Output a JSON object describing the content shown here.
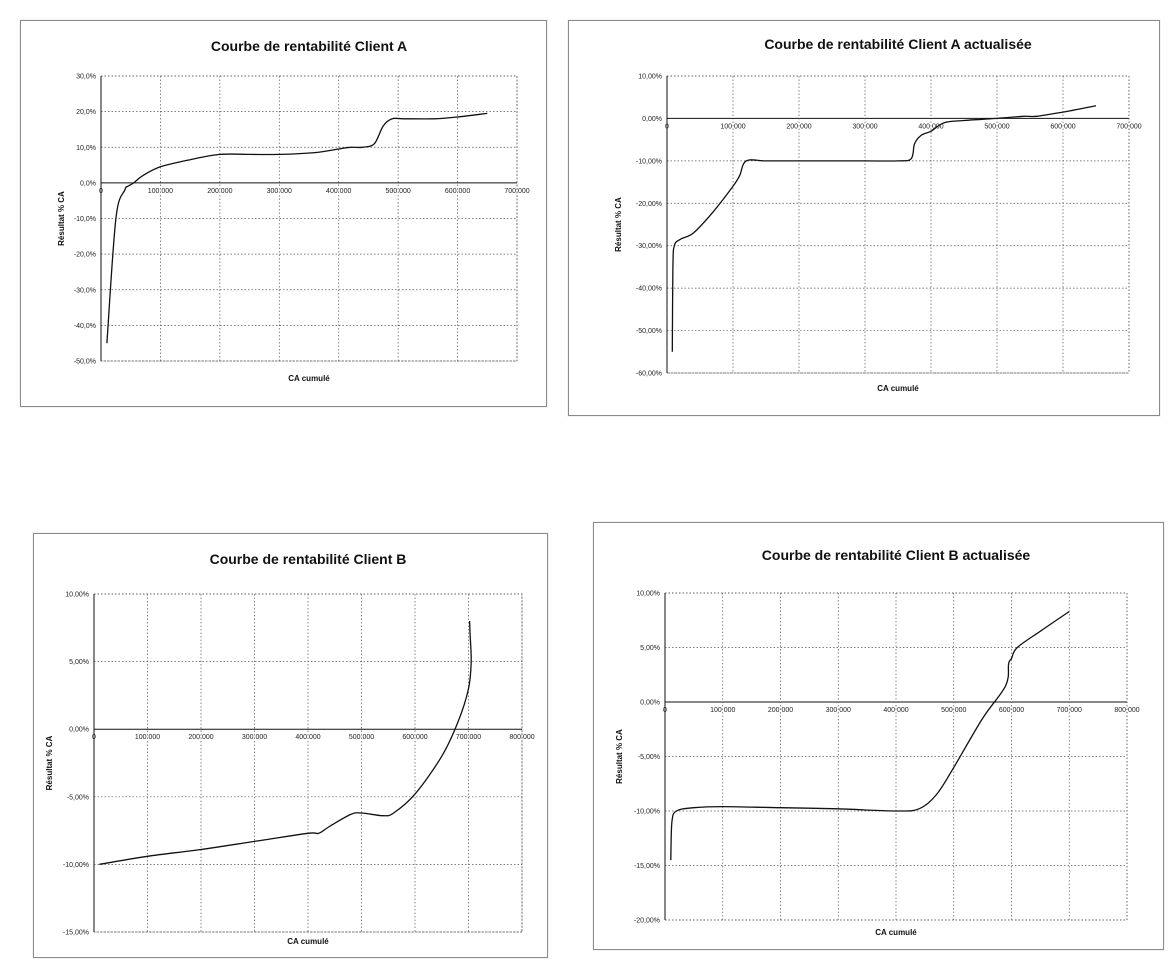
{
  "chart_data": [
    {
      "type": "line",
      "title": "Courbe de rentabilité Client A",
      "xlabel": "CA cumulé",
      "ylabel": "Résultat % CA",
      "xlim": [
        0,
        700000
      ],
      "ylim": [
        -50,
        30
      ],
      "x_ticks": [
        "100 000",
        "200 000",
        "300 000",
        "400 000",
        "500 000",
        "600 000",
        "700 000"
      ],
      "x_tick_values": [
        100000,
        200000,
        300000,
        400000,
        500000,
        600000,
        700000
      ],
      "zero_tick": "0",
      "y_ticks": [
        "30,0%",
        "20,0%",
        "10,0%",
        "0,0%",
        "-10,0%",
        "-20,0%",
        "-30,0%",
        "-40,0%",
        "-50,0%"
      ],
      "y_tick_values": [
        30,
        20,
        10,
        0,
        -10,
        -20,
        -30,
        -40,
        -50
      ],
      "grid": true,
      "series": [
        {
          "x": [
            10000,
            25000,
            40000,
            45000,
            55000,
            70000,
            100000,
            150000,
            200000,
            250000,
            300000,
            360000,
            400000,
            420000,
            440000,
            460000,
            475000,
            490000,
            510000,
            560000,
            600000,
            650000
          ],
          "y": [
            -45,
            -10,
            -2,
            -1,
            0,
            2,
            4.5,
            6.5,
            8,
            8,
            8,
            8.5,
            9.5,
            10,
            10,
            11,
            16,
            18,
            18,
            18,
            18.5,
            19.5
          ]
        }
      ]
    },
    {
      "type": "line",
      "title": "Courbe de rentabilité Client A actualisée",
      "xlabel": "CA cumulé",
      "ylabel": "Résultat % CA",
      "xlim": [
        0,
        700000
      ],
      "ylim": [
        -60,
        10
      ],
      "x_ticks": [
        "100 000",
        "200 000",
        "300 000",
        "400 000",
        "500 000",
        "600 000",
        "700 000"
      ],
      "x_tick_values": [
        100000,
        200000,
        300000,
        400000,
        500000,
        600000,
        700000
      ],
      "zero_tick": "0",
      "y_ticks": [
        "10,00%",
        "0,00%",
        "-10,00%",
        "-20,00%",
        "-30,00%",
        "-40,00%",
        "-50,00%",
        "-60,00%"
      ],
      "y_tick_values": [
        10,
        0,
        -10,
        -20,
        -30,
        -40,
        -50,
        -60
      ],
      "grid": true,
      "series": [
        {
          "x": [
            8000,
            9000,
            11000,
            20000,
            40000,
            70000,
            100000,
            110000,
            120000,
            150000,
            200000,
            250000,
            300000,
            350000,
            370000,
            375000,
            385000,
            400000,
            420000,
            450000,
            500000,
            540000,
            560000,
            600000,
            650000
          ],
          "y": [
            -55,
            -35,
            -30,
            -28.5,
            -27,
            -22,
            -16,
            -13.5,
            -10,
            -10,
            -10,
            -10,
            -10,
            -10,
            -9.5,
            -6,
            -4,
            -3,
            -1,
            -0.5,
            0,
            0.5,
            0.5,
            1.5,
            3
          ]
        }
      ]
    },
    {
      "type": "line",
      "title": "Courbe de rentabilité Client B",
      "xlabel": "CA cumulé",
      "ylabel": "Résultat % CA",
      "xlim": [
        0,
        800000
      ],
      "ylim": [
        -15,
        10
      ],
      "x_ticks": [
        "100 000",
        "200 000",
        "300 000",
        "400 000",
        "500 000",
        "600 000",
        "700 000",
        "800 000"
      ],
      "x_tick_values": [
        100000,
        200000,
        300000,
        400000,
        500000,
        600000,
        700000,
        800000
      ],
      "zero_tick": "0",
      "y_ticks": [
        "10,00%",
        "5,00%",
        "0,00%",
        "-5,00%",
        "-10,00%",
        "-15,00%"
      ],
      "y_tick_values": [
        10,
        5,
        0,
        -5,
        -10,
        -15
      ],
      "grid": true,
      "series": [
        {
          "x": [
            10000,
            100000,
            200000,
            300000,
            400000,
            420000,
            440000,
            480000,
            500000,
            540000,
            560000,
            600000,
            650000,
            680000,
            700000,
            705000,
            703000,
            702000
          ],
          "y": [
            -10,
            -9.4,
            -8.9,
            -8.3,
            -7.7,
            -7.7,
            -7.2,
            -6.3,
            -6.2,
            -6.4,
            -6.2,
            -4.8,
            -2,
            0.5,
            3,
            5,
            7,
            8
          ]
        }
      ]
    },
    {
      "type": "line",
      "title": "Courbe de rentabilité Client B actualisée",
      "xlabel": "CA cumulé",
      "ylabel": "Résultat % CA",
      "xlim": [
        0,
        800000
      ],
      "ylim": [
        -20,
        10
      ],
      "x_ticks": [
        "100 000",
        "200 000",
        "300 000",
        "400 000",
        "500 000",
        "600 000",
        "700 000",
        "800 000"
      ],
      "x_tick_values": [
        100000,
        200000,
        300000,
        400000,
        500000,
        600000,
        700000,
        800000
      ],
      "zero_tick": "0",
      "y_ticks": [
        "10,00%",
        "5,00%",
        "0,00%",
        "-5,00%",
        "-10,00%",
        "-15,00%",
        "-20,00%"
      ],
      "y_tick_values": [
        10,
        5,
        0,
        -5,
        -10,
        -15,
        -20
      ],
      "grid": true,
      "series": [
        {
          "x": [
            10000,
            12000,
            20000,
            50000,
            100000,
            200000,
            300000,
            400000,
            440000,
            470000,
            500000,
            550000,
            590000,
            595000,
            600000,
            610000,
            650000,
            700000
          ],
          "y": [
            -14.5,
            -11,
            -10,
            -9.7,
            -9.6,
            -9.7,
            -9.8,
            -10,
            -9.8,
            -8.5,
            -6,
            -1.5,
            1.5,
            3.5,
            4,
            5,
            6.5,
            8.3
          ]
        }
      ]
    }
  ]
}
